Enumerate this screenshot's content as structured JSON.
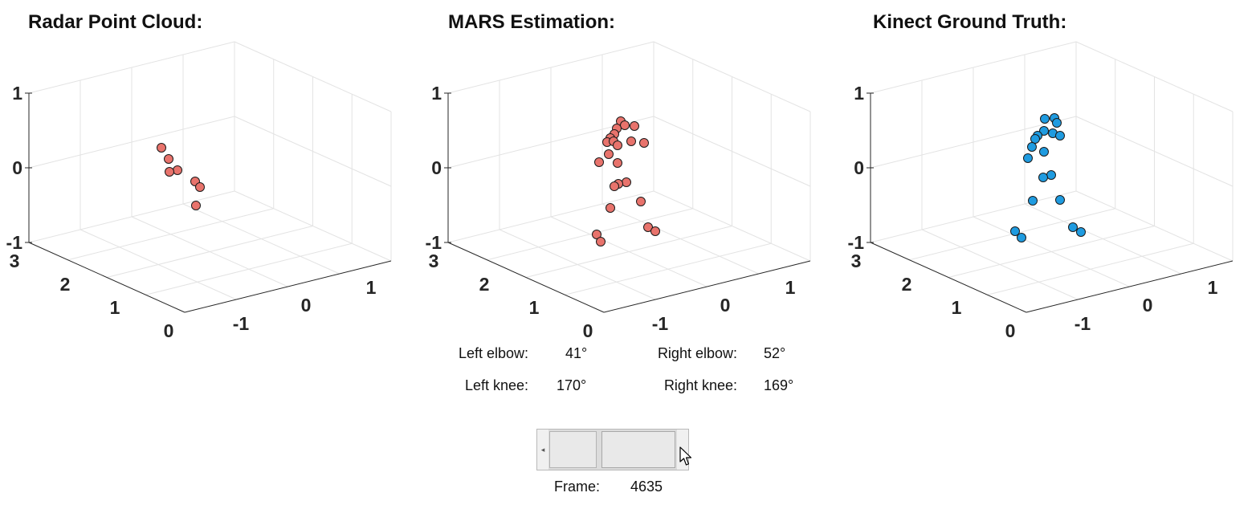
{
  "panels": [
    {
      "title": "Radar Point Cloud:",
      "marker_color": "#e8736c",
      "z_ticks": [
        "1",
        "0",
        "-1"
      ],
      "y_ticks": [
        "3",
        "2",
        "1",
        "0"
      ],
      "x_ticks": [
        "-1",
        "0",
        "1"
      ],
      "points": [
        [
          201,
          184
        ],
        [
          210,
          198
        ],
        [
          221,
          212
        ],
        [
          211,
          214
        ],
        [
          243,
          226
        ],
        [
          249,
          233
        ],
        [
          244,
          256
        ]
      ]
    },
    {
      "title": "MARS Estimation:",
      "marker_color": "#e8736c",
      "z_ticks": [
        "1",
        "0",
        "-1"
      ],
      "y_ticks": [
        "3",
        "2",
        "1",
        "0"
      ],
      "x_ticks": [
        "-1",
        "0",
        "1"
      ],
      "points": [
        [
          773,
          151
        ],
        [
          778,
          156
        ],
        [
          790,
          157
        ],
        [
          768,
          160
        ],
        [
          765,
          167
        ],
        [
          760,
          172
        ],
        [
          756,
          177
        ],
        [
          764,
          176
        ],
        [
          786,
          176
        ],
        [
          769,
          181
        ],
        [
          802,
          178
        ],
        [
          758,
          192
        ],
        [
          746,
          202
        ],
        [
          769,
          203
        ],
        [
          780,
          227
        ],
        [
          770,
          229
        ],
        [
          765,
          232
        ],
        [
          798,
          251
        ],
        [
          760,
          259
        ],
        [
          807,
          283
        ],
        [
          816,
          288
        ],
        [
          743,
          292
        ],
        [
          748,
          301
        ]
      ]
    },
    {
      "title": "Kinect Ground Truth:",
      "marker_color": "#1f9be0",
      "z_ticks": [
        "1",
        "0",
        "-1"
      ],
      "y_ticks": [
        "3",
        "2",
        "1",
        "0"
      ],
      "x_ticks": [
        "-1",
        "0",
        "1"
      ],
      "points": [
        [
          1301,
          148
        ],
        [
          1313,
          147
        ],
        [
          1316,
          153
        ],
        [
          1300,
          163
        ],
        [
          1311,
          166
        ],
        [
          1292,
          169
        ],
        [
          1289,
          173
        ],
        [
          1320,
          169
        ],
        [
          1285,
          183
        ],
        [
          1300,
          189
        ],
        [
          1280,
          197
        ],
        [
          1309,
          218
        ],
        [
          1299,
          221
        ],
        [
          1286,
          250
        ],
        [
          1320,
          249
        ],
        [
          1264,
          288
        ],
        [
          1272,
          296
        ],
        [
          1336,
          283
        ],
        [
          1346,
          289
        ]
      ]
    }
  ],
  "angles": {
    "left_elbow_label": "Left elbow:",
    "left_elbow_value": "41°",
    "right_elbow_label": "Right elbow:",
    "right_elbow_value": "52°",
    "left_knee_label": "Left knee:",
    "left_knee_value": "170°",
    "right_knee_label": "Right knee:",
    "right_knee_value": "169°"
  },
  "slider": {
    "left_arrow": "◂",
    "right_arrow": "▸",
    "position_fraction": 0.62
  },
  "frame": {
    "label": "Frame:",
    "value": "4635"
  }
}
